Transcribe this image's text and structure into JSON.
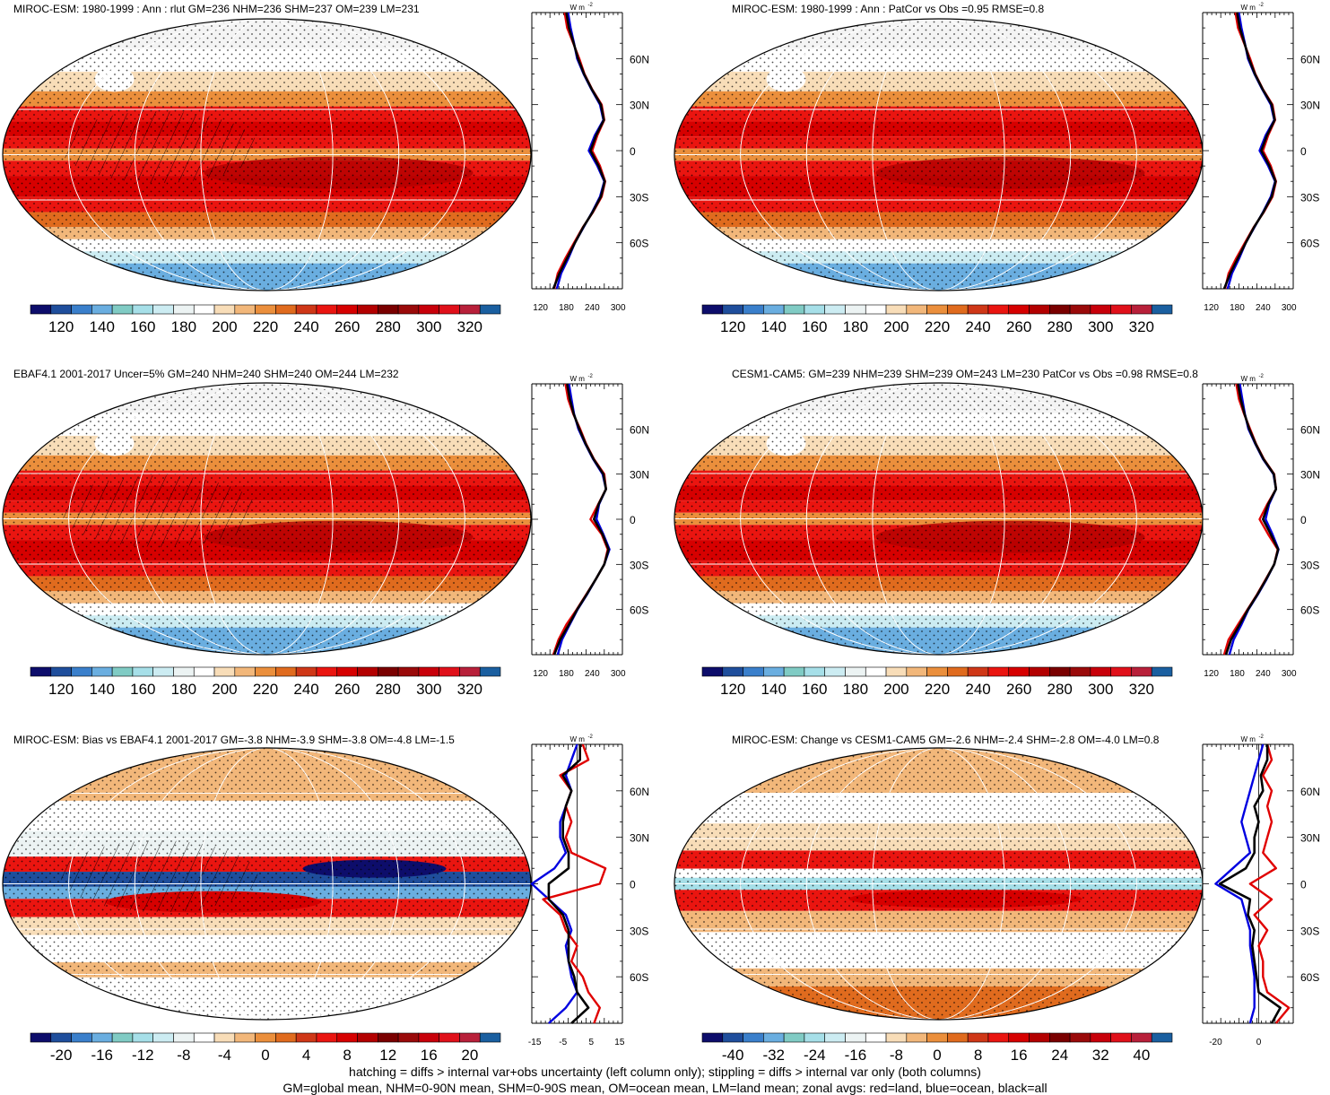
{
  "palette": {
    "abs": [
      "#0d0d6b",
      "#1f4e9c",
      "#3a7fcb",
      "#6aaee0",
      "#80cbc4",
      "#a6dfe8",
      "#ccecf2",
      "#ecf3f3",
      "#ffffff",
      "#f8ddb8",
      "#f2b77a",
      "#eb8f3c",
      "#e06b1e",
      "#cf3717",
      "#ea1510",
      "#d60000",
      "#b30000",
      "#7a0000",
      "#9a0a0a",
      "#c8000a",
      "#e0101a",
      "#b8203a",
      "#1a5fa0"
    ],
    "diff": [
      "#0d0d6b",
      "#1f4e9c",
      "#3a7fcb",
      "#6aaee0",
      "#80cbc4",
      "#a6dfe8",
      "#ccecf2",
      "#ecf3f3",
      "#ffffff",
      "#f8ddb8",
      "#f2b77a",
      "#eb8f3c",
      "#e06b1e",
      "#cf3717",
      "#ea1510",
      "#d60000",
      "#b30000",
      "#7a0000",
      "#9a0a0a",
      "#c8000a",
      "#e0101a",
      "#b8203a",
      "#1a5fa0"
    ],
    "line_colors": {
      "land": "#e00000",
      "ocean": "#0000e0",
      "all": "#000000"
    }
  },
  "panels": [
    {
      "id": "miroc-esm-climatology",
      "title": "MIROC-ESM: 1980-1999 : Ann : rlut GM=236 NHM=236 SHM=237 OM=239 LM=231",
      "map_type": "absolute",
      "colorbar_labels": [
        "120",
        "140",
        "160",
        "180",
        "200",
        "220",
        "240",
        "260",
        "280",
        "300",
        "320"
      ],
      "zonal_unit": "W m",
      "zonal_unit_sup": "-2",
      "zonal_xticks": [
        120,
        180,
        240,
        300
      ],
      "zonal_xlabels": [
        "120",
        "180",
        "240",
        "300"
      ],
      "zonal_xlim": [
        100,
        310
      ],
      "lat_labels": [
        "60N",
        "30N",
        "0",
        "30S",
        "60S"
      ]
    },
    {
      "id": "miroc-esm-patcor",
      "title": "MIROC-ESM: 1980-1999 : Ann : PatCor vs Obs =0.95 RMSE=0.8",
      "map_type": "absolute",
      "colorbar_labels": [
        "120",
        "140",
        "160",
        "180",
        "200",
        "220",
        "240",
        "260",
        "280",
        "300",
        "320"
      ],
      "zonal_unit": "W m",
      "zonal_unit_sup": "-2",
      "zonal_xticks": [
        120,
        180,
        240,
        300
      ],
      "zonal_xlabels": [
        "120",
        "180",
        "240",
        "300"
      ],
      "zonal_xlim": [
        100,
        310
      ],
      "lat_labels": [
        "60N",
        "30N",
        "0",
        "30S",
        "60S"
      ]
    },
    {
      "id": "ebaf-observations",
      "title": "EBAF4.1 2001-2017 Uncer=5% GM=240 NHM=240 SHM=240 OM=244 LM=232",
      "map_type": "absolute",
      "colorbar_labels": [
        "120",
        "140",
        "160",
        "180",
        "200",
        "220",
        "240",
        "260",
        "280",
        "300",
        "320"
      ],
      "zonal_unit": "W m",
      "zonal_unit_sup": "-2",
      "zonal_xticks": [
        120,
        180,
        240,
        300
      ],
      "zonal_xlabels": [
        "120",
        "180",
        "240",
        "300"
      ],
      "zonal_xlim": [
        100,
        310
      ],
      "lat_labels": [
        "60N",
        "30N",
        "0",
        "30S",
        "60S"
      ]
    },
    {
      "id": "cesm1-cam5",
      "title": "CESM1-CAM5: GM=239 NHM=239 SHM=239 OM=243 LM=230 PatCor vs Obs =0.98 RMSE=0.8",
      "map_type": "absolute",
      "colorbar_labels": [
        "120",
        "140",
        "160",
        "180",
        "200",
        "220",
        "240",
        "260",
        "280",
        "300",
        "320"
      ],
      "zonal_unit": "W m",
      "zonal_unit_sup": "-2",
      "zonal_xticks": [
        120,
        180,
        240,
        300
      ],
      "zonal_xlabels": [
        "120",
        "180",
        "240",
        "300"
      ],
      "zonal_xlim": [
        100,
        310
      ],
      "lat_labels": [
        "60N",
        "30N",
        "0",
        "30S",
        "60S"
      ]
    },
    {
      "id": "miroc-esm-bias",
      "title": "MIROC-ESM: Bias vs EBAF4.1 2001-2017 GM=-3.8 NHM=-3.9 SHM=-3.8 OM=-4.8 LM=-1.5",
      "map_type": "bias",
      "colorbar_labels": [
        "-20",
        "-16",
        "-12",
        "-8",
        "-4",
        "0",
        "4",
        "8",
        "12",
        "16",
        "20"
      ],
      "zonal_unit": "W m",
      "zonal_unit_sup": "-2",
      "zonal_xticks": [
        -15,
        -5,
        5,
        15
      ],
      "zonal_xlabels": [
        "-15",
        "-5",
        "5",
        "15"
      ],
      "zonal_xlim": [
        -16,
        16
      ],
      "zonal_zero": 1,
      "lat_labels": [
        "60N",
        "30N",
        "0",
        "30S",
        "60S"
      ]
    },
    {
      "id": "miroc-esm-change",
      "title": "MIROC-ESM: Change vs CESM1-CAM5 GM=-2.6 NHM=-2.4 SHM=-2.8 OM=-4.0 LM=0.8",
      "map_type": "change",
      "colorbar_labels": [
        "-40",
        "-32",
        "-24",
        "-16",
        "-8",
        "0",
        "8",
        "16",
        "24",
        "32",
        "40"
      ],
      "zonal_unit": "W m",
      "zonal_unit_sup": "-2",
      "zonal_xticks": [
        -20,
        0
      ],
      "zonal_xlabels": [
        "-20",
        "0"
      ],
      "zonal_xlim": [
        -26,
        16
      ],
      "zonal_zero": 1,
      "lat_labels": [
        "60N",
        "30N",
        "0",
        "30S",
        "60S"
      ]
    }
  ],
  "chart_data": [
    {
      "type": "line",
      "panel": "miroc-esm-climatology",
      "x_quantity": "rlut",
      "y_quantity": "latitude",
      "lat": [
        -90,
        -80,
        -70,
        -60,
        -50,
        -40,
        -30,
        -20,
        -10,
        0,
        10,
        20,
        30,
        40,
        50,
        60,
        70,
        80,
        90
      ],
      "series": [
        {
          "name": "land",
          "values": [
            152,
            160,
            178,
            198,
            218,
            242,
            262,
            270,
            258,
            240,
            252,
            268,
            262,
            240,
            222,
            210,
            196,
            182,
            176
          ]
        },
        {
          "name": "ocean",
          "values": [
            158,
            168,
            185,
            200,
            220,
            240,
            258,
            268,
            252,
            232,
            246,
            266,
            258,
            238,
            220,
            205,
            198,
            190,
            184
          ]
        },
        {
          "name": "all",
          "values": [
            150,
            164,
            182,
            200,
            219,
            241,
            260,
            269,
            255,
            236,
            249,
            267,
            260,
            239,
            221,
            207,
            197,
            186,
            180
          ]
        }
      ]
    },
    {
      "type": "line",
      "panel": "miroc-esm-patcor",
      "x_quantity": "rlut",
      "y_quantity": "latitude",
      "lat": [
        -90,
        -80,
        -70,
        -60,
        -50,
        -40,
        -30,
        -20,
        -10,
        0,
        10,
        20,
        30,
        40,
        50,
        60,
        70,
        80,
        90
      ],
      "series": [
        {
          "name": "land",
          "values": [
            152,
            160,
            178,
            198,
            218,
            242,
            262,
            270,
            258,
            240,
            252,
            268,
            262,
            240,
            222,
            210,
            196,
            182,
            176
          ]
        },
        {
          "name": "ocean",
          "values": [
            158,
            168,
            185,
            200,
            220,
            240,
            258,
            268,
            252,
            232,
            246,
            266,
            258,
            238,
            220,
            205,
            198,
            190,
            184
          ]
        },
        {
          "name": "all",
          "values": [
            150,
            164,
            182,
            200,
            219,
            241,
            260,
            269,
            255,
            236,
            249,
            267,
            260,
            239,
            221,
            207,
            197,
            186,
            180
          ]
        }
      ]
    },
    {
      "type": "line",
      "panel": "ebaf-observations",
      "x_quantity": "rlut",
      "y_quantity": "latitude",
      "lat": [
        -90,
        -80,
        -70,
        -60,
        -50,
        -40,
        -30,
        -20,
        -10,
        0,
        10,
        20,
        30,
        40,
        50,
        60,
        70,
        80,
        90
      ],
      "series": [
        {
          "name": "land",
          "values": [
            150,
            162,
            180,
            204,
            226,
            248,
            268,
            276,
            262,
            236,
            254,
            272,
            268,
            244,
            226,
            212,
            196,
            184,
            178
          ]
        },
        {
          "name": "ocean",
          "values": [
            160,
            170,
            188,
            206,
            228,
            248,
            268,
            280,
            266,
            250,
            256,
            272,
            264,
            242,
            224,
            208,
            198,
            192,
            186
          ]
        },
        {
          "name": "all",
          "values": [
            152,
            166,
            186,
            205,
            227,
            248,
            268,
            278,
            264,
            244,
            255,
            272,
            266,
            243,
            225,
            210,
            197,
            188,
            182
          ]
        }
      ]
    },
    {
      "type": "line",
      "panel": "cesm1-cam5",
      "x_quantity": "rlut",
      "y_quantity": "latitude",
      "lat": [
        -90,
        -80,
        -70,
        -60,
        -50,
        -40,
        -30,
        -20,
        -10,
        0,
        10,
        20,
        30,
        40,
        50,
        60,
        70,
        80,
        90
      ],
      "series": [
        {
          "name": "land",
          "values": [
            150,
            160,
            182,
            204,
            226,
            246,
            266,
            274,
            252,
            232,
            250,
            270,
            266,
            242,
            224,
            210,
            196,
            184,
            178
          ]
        },
        {
          "name": "ocean",
          "values": [
            162,
            172,
            190,
            206,
            228,
            248,
            266,
            276,
            262,
            246,
            254,
            270,
            264,
            240,
            222,
            206,
            198,
            192,
            186
          ]
        },
        {
          "name": "all",
          "values": [
            154,
            166,
            186,
            205,
            227,
            247,
            266,
            275,
            258,
            240,
            252,
            270,
            265,
            241,
            223,
            208,
            197,
            188,
            182
          ]
        }
      ]
    },
    {
      "type": "line",
      "panel": "miroc-esm-bias",
      "x_quantity": "rlut bias",
      "y_quantity": "latitude",
      "lat": [
        -90,
        -80,
        -70,
        -60,
        -50,
        -40,
        -30,
        -20,
        -10,
        0,
        10,
        20,
        30,
        40,
        50,
        60,
        70,
        80,
        90
      ],
      "series": [
        {
          "name": "land",
          "values": [
            6,
            8,
            4,
            2,
            -2,
            0,
            -4,
            -6,
            -12,
            8,
            10,
            -2,
            -4,
            -2,
            -4,
            -2,
            -6,
            4,
            2
          ]
        },
        {
          "name": "ocean",
          "values": [
            -10,
            -4,
            0,
            -2,
            -3,
            -4,
            -2,
            -4,
            -10,
            -16,
            -8,
            -4,
            -6,
            -6,
            -4,
            -2,
            -4,
            -2,
            0
          ]
        },
        {
          "name": "all",
          "values": [
            -2,
            4,
            0,
            -1,
            -3,
            -3,
            -3,
            -5,
            -10,
            -10,
            -3,
            -3,
            -5,
            -5,
            -4,
            -2,
            -5,
            1,
            1
          ]
        }
      ]
    },
    {
      "type": "line",
      "panel": "miroc-esm-change",
      "x_quantity": "rlut change",
      "y_quantity": "latitude",
      "lat": [
        -90,
        -80,
        -70,
        -60,
        -50,
        -40,
        -30,
        -20,
        -10,
        0,
        10,
        20,
        30,
        40,
        50,
        60,
        70,
        80,
        90
      ],
      "series": [
        {
          "name": "land",
          "values": [
            8,
            14,
            4,
            2,
            2,
            0,
            4,
            -2,
            6,
            -4,
            8,
            2,
            4,
            6,
            4,
            6,
            2,
            6,
            4
          ]
        },
        {
          "name": "ocean",
          "values": [
            -4,
            -2,
            -2,
            -2,
            -3,
            -4,
            -4,
            -6,
            -8,
            -20,
            -12,
            -4,
            -6,
            -8,
            -6,
            -4,
            -2,
            0,
            2
          ]
        },
        {
          "name": "all",
          "values": [
            6,
            10,
            0,
            -1,
            -2,
            -3,
            -2,
            -5,
            -4,
            -18,
            -6,
            -2,
            -2,
            0,
            -2,
            2,
            1,
            4,
            4
          ]
        }
      ]
    }
  ],
  "footnote": {
    "line1": "hatching = diffs > internal var+obs uncertainty (left column only); stippling = diffs > internal var only (both columns)",
    "line2": "GM=global mean, NHM=0-90N mean, SHM=0-90S mean, OM=ocean mean, LM=land mean; zonal avgs: red=land, blue=ocean, black=all"
  }
}
